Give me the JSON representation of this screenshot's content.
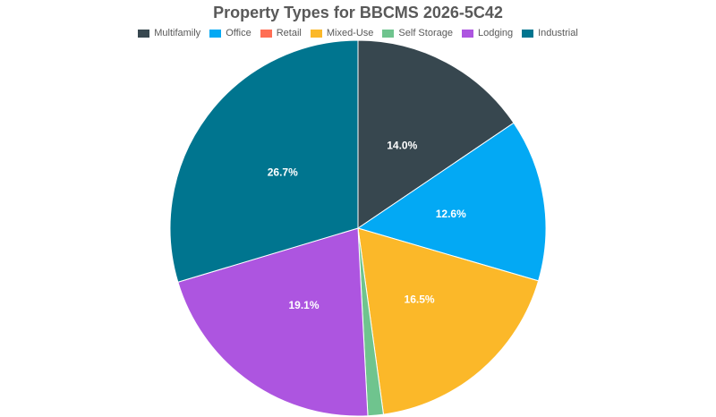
{
  "chart_data": {
    "type": "pie",
    "title": "Property Types for BBCMS 2026-5C42",
    "legend_position": "top",
    "categories": [
      "Multifamily",
      "Office",
      "Retail",
      "Mixed-Use",
      "Self Storage",
      "Lodging",
      "Industrial"
    ],
    "values": [
      14.0,
      12.6,
      0.0,
      16.5,
      1.2,
      19.1,
      26.7
    ],
    "labels": [
      "14.0%",
      "12.6%",
      "",
      "16.5%",
      "",
      "19.1%",
      "26.7%"
    ],
    "colors": [
      "#37474f",
      "#03a9f4",
      "#ff6e54",
      "#fbb829",
      "#6fc48e",
      "#ad55e0",
      "#00758f"
    ],
    "start_angle_deg": 0,
    "direction": "clockwise"
  }
}
